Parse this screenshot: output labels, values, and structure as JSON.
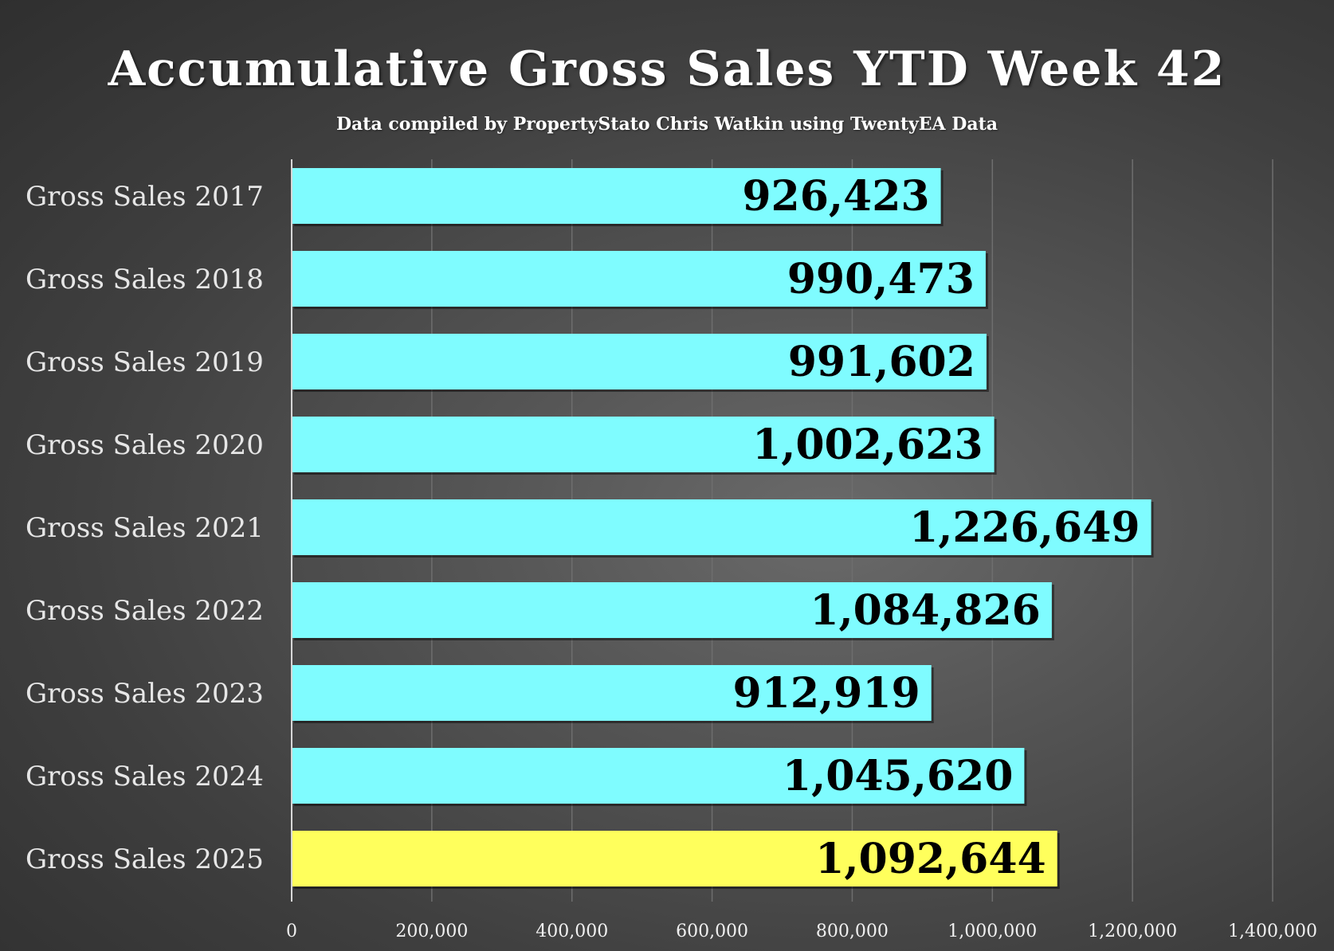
{
  "chart_data": {
    "type": "bar",
    "orientation": "horizontal",
    "title": "Accumulative Gross Sales YTD Week 42",
    "subtitle": "Data compiled by PropertyStato Chris Watkin using TwentyEA Data",
    "categories": [
      "Gross Sales 2017",
      "Gross Sales 2018",
      "Gross Sales 2019",
      "Gross Sales 2020",
      "Gross Sales 2021",
      "Gross Sales 2022",
      "Gross Sales 2023",
      "Gross Sales 2024",
      "Gross Sales 2025"
    ],
    "values": [
      926423,
      990473,
      991602,
      1002623,
      1226649,
      1084826,
      912919,
      1045620,
      1092644
    ],
    "value_labels": [
      "926,423",
      "990,473",
      "991,602",
      "1,002,623",
      "1,226,649",
      "1,084,826",
      "912,919",
      "1,045,620",
      "1,092,644"
    ],
    "xlim": [
      0,
      1400000
    ],
    "x_ticks": [
      0,
      200000,
      400000,
      600000,
      800000,
      1000000,
      1200000,
      1400000
    ],
    "x_tick_labels": [
      "0",
      "200,000",
      "400,000",
      "600,000",
      "800,000",
      "1,000,000",
      "1,200,000",
      "1,400,000"
    ],
    "grid": true,
    "legend": "none",
    "bar_colors": [
      "#7ffcff",
      "#7ffcff",
      "#7ffcff",
      "#7ffcff",
      "#7ffcff",
      "#7ffcff",
      "#7ffcff",
      "#7ffcff",
      "#ffff5c"
    ],
    "background_color": "#4a4a4a",
    "text_color": "#ffffff"
  }
}
